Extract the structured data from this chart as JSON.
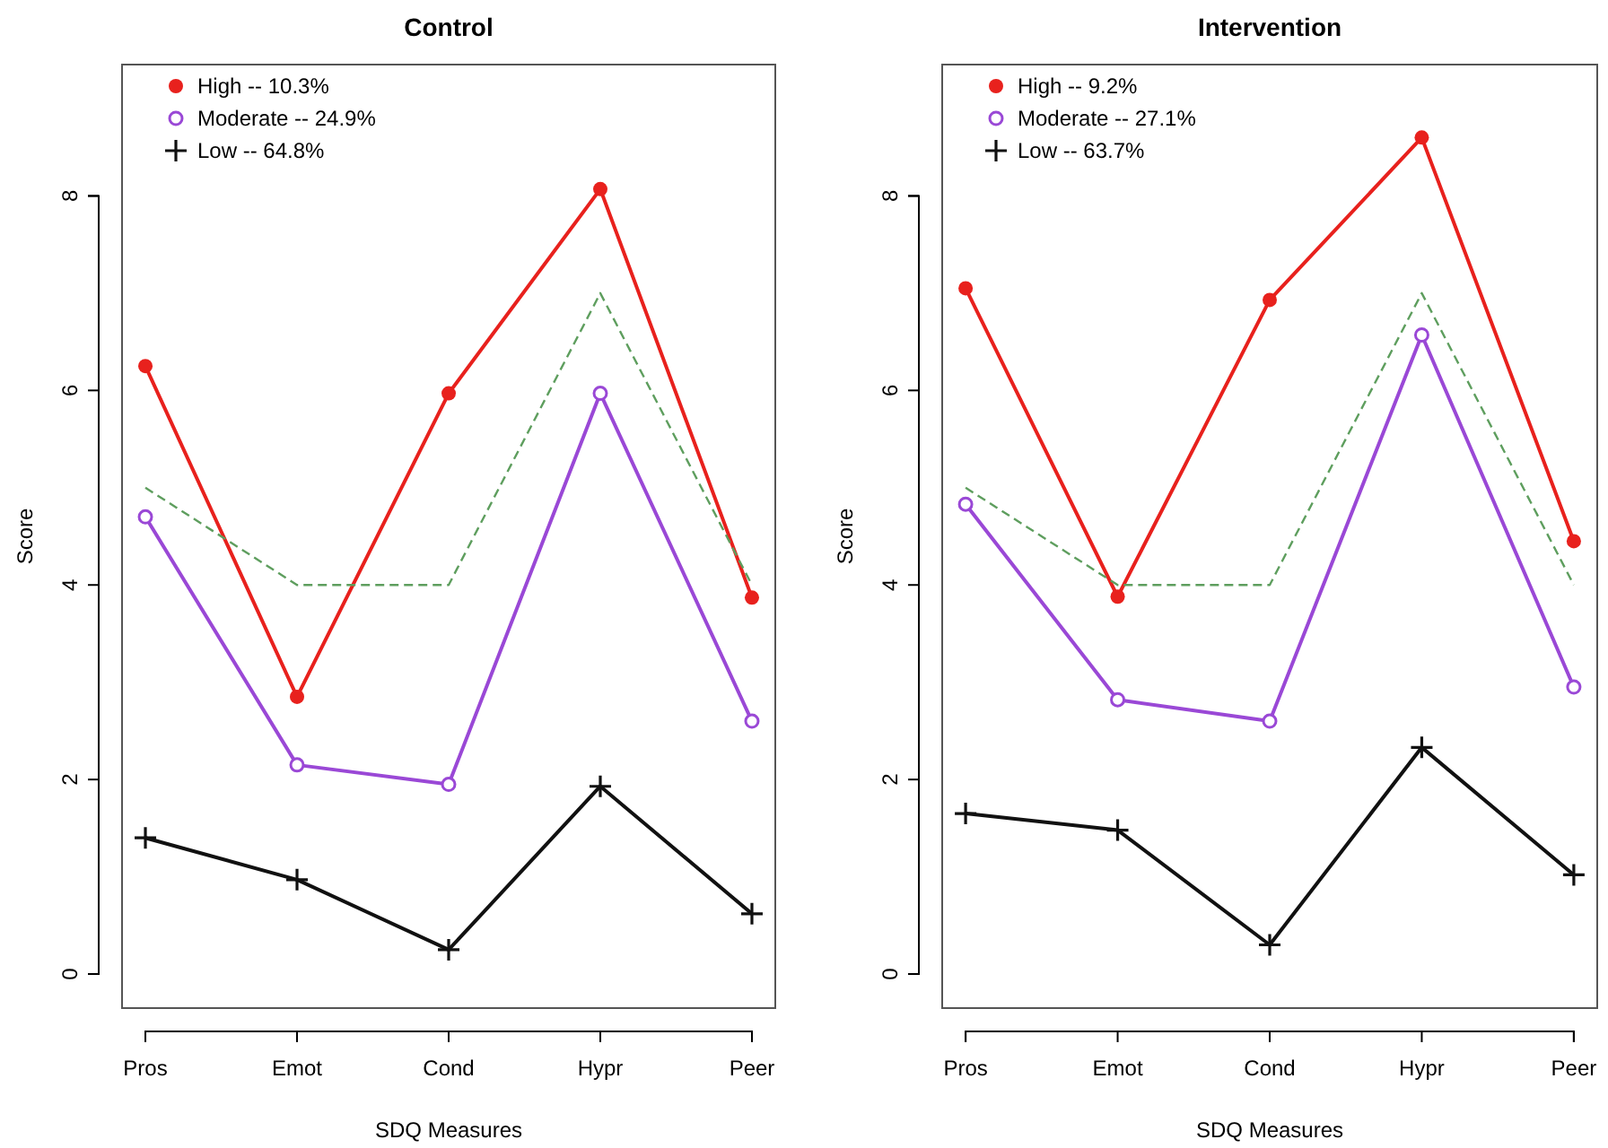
{
  "chart_data": [
    {
      "type": "line",
      "title": "Control",
      "xlabel": "SDQ Measures",
      "ylabel": "Score",
      "categories": [
        "Pros",
        "Emot",
        "Cond",
        "Hypr",
        "Peer"
      ],
      "ylim": [
        -0.35,
        9.35
      ],
      "yticks": [
        0,
        2,
        4,
        6,
        8
      ],
      "legend": "top left",
      "grid": false,
      "series": [
        {
          "name": "High -- 10.3%",
          "color": "#e8211d",
          "marker": "circle",
          "line_style": "solid",
          "values": [
            6.25,
            2.85,
            5.97,
            8.07,
            3.87
          ]
        },
        {
          "name": "Moderate -- 24.9%",
          "color": "#9a48d6",
          "marker": "circle-open",
          "line_style": "solid",
          "values": [
            4.7,
            2.15,
            1.95,
            5.97,
            2.6
          ]
        },
        {
          "name": "Low -- 64.8%",
          "color": "#111111",
          "marker": "cross",
          "line_style": "solid",
          "values": [
            1.4,
            0.97,
            0.25,
            1.93,
            0.62
          ]
        },
        {
          "color": "#5e9e5e",
          "marker": "none",
          "line_style": "dashed",
          "values": [
            5,
            4,
            4,
            7,
            4
          ]
        }
      ]
    },
    {
      "type": "line",
      "title": "Intervention",
      "xlabel": "SDQ Measures",
      "ylabel": "Score",
      "categories": [
        "Pros",
        "Emot",
        "Cond",
        "Hypr",
        "Peer"
      ],
      "ylim": [
        -0.35,
        9.35
      ],
      "yticks": [
        0,
        2,
        4,
        6,
        8
      ],
      "legend": "top left",
      "grid": false,
      "series": [
        {
          "name": "High -- 9.2%",
          "color": "#e8211d",
          "marker": "circle",
          "line_style": "solid",
          "values": [
            7.05,
            3.88,
            6.93,
            8.6,
            4.45
          ]
        },
        {
          "name": "Moderate -- 27.1%",
          "color": "#9a48d6",
          "marker": "circle-open",
          "line_style": "solid",
          "values": [
            4.83,
            2.82,
            2.6,
            6.57,
            2.95
          ]
        },
        {
          "name": "Low -- 63.7%",
          "color": "#111111",
          "marker": "cross",
          "line_style": "solid",
          "values": [
            1.65,
            1.48,
            0.3,
            2.33,
            1.02
          ]
        },
        {
          "color": "#5e9e5e",
          "marker": "none",
          "line_style": "dashed",
          "values": [
            5,
            4,
            4,
            7,
            4
          ]
        }
      ]
    }
  ]
}
